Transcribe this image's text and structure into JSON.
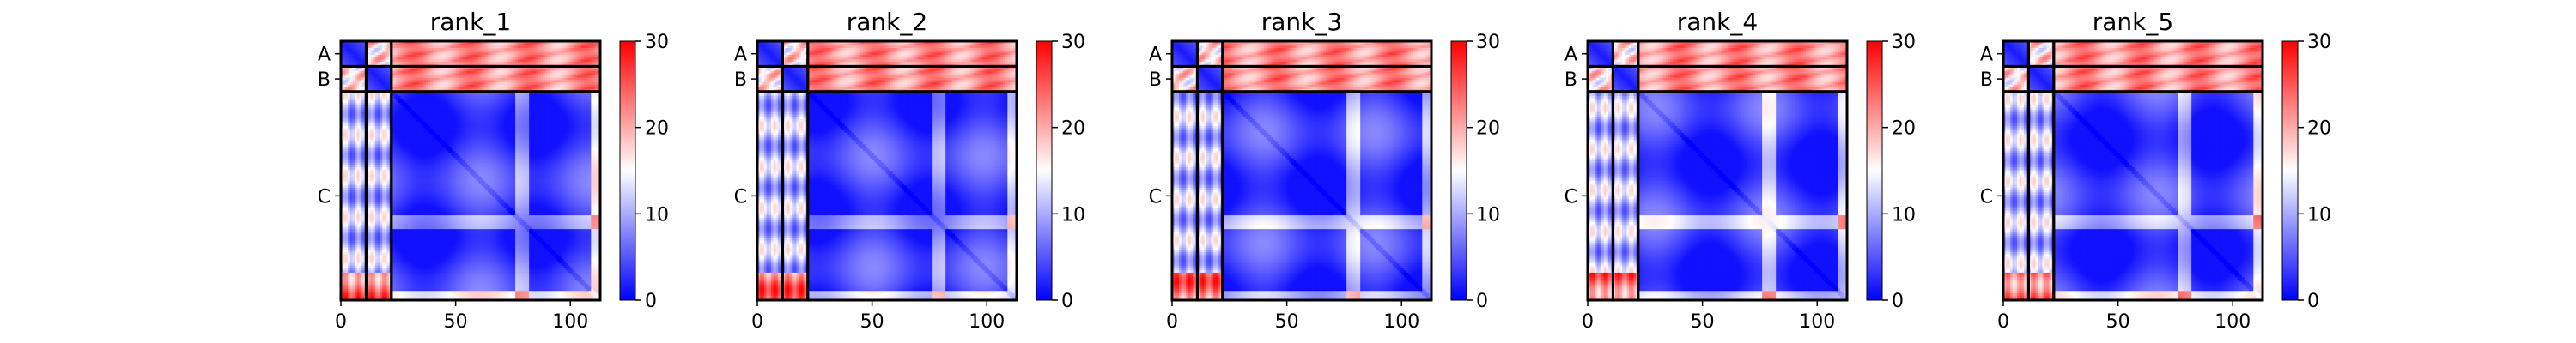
{
  "chart_data": [
    {
      "type": "heatmap",
      "title": "rank_1",
      "chain_labels": [
        "A",
        "B",
        "C"
      ],
      "chain_boundaries": [
        0,
        11,
        22,
        113
      ],
      "x_ticks": [
        0,
        50,
        100
      ],
      "colorbar": {
        "min": 0,
        "max": 30,
        "ticks": [
          0,
          10,
          20,
          30
        ],
        "colors": [
          "#0000ff",
          "#ffffff",
          "#ff0000"
        ]
      },
      "variant": 0
    },
    {
      "type": "heatmap",
      "title": "rank_2",
      "chain_labels": [
        "A",
        "B",
        "C"
      ],
      "chain_boundaries": [
        0,
        11,
        22,
        113
      ],
      "x_ticks": [
        0,
        50,
        100
      ],
      "colorbar": {
        "min": 0,
        "max": 30,
        "ticks": [
          0,
          10,
          20,
          30
        ],
        "colors": [
          "#0000ff",
          "#ffffff",
          "#ff0000"
        ]
      },
      "variant": 1
    },
    {
      "type": "heatmap",
      "title": "rank_3",
      "chain_labels": [
        "A",
        "B",
        "C"
      ],
      "chain_boundaries": [
        0,
        11,
        22,
        113
      ],
      "x_ticks": [
        0,
        50,
        100
      ],
      "colorbar": {
        "min": 0,
        "max": 30,
        "ticks": [
          0,
          10,
          20,
          30
        ],
        "colors": [
          "#0000ff",
          "#ffffff",
          "#ff0000"
        ]
      },
      "variant": 2
    },
    {
      "type": "heatmap",
      "title": "rank_4",
      "chain_labels": [
        "A",
        "B",
        "C"
      ],
      "chain_boundaries": [
        0,
        11,
        22,
        113
      ],
      "x_ticks": [
        0,
        50,
        100
      ],
      "colorbar": {
        "min": 0,
        "max": 30,
        "ticks": [
          0,
          10,
          20,
          30
        ],
        "colors": [
          "#0000ff",
          "#ffffff",
          "#ff0000"
        ]
      },
      "variant": 3
    },
    {
      "type": "heatmap",
      "title": "rank_5",
      "chain_labels": [
        "A",
        "B",
        "C"
      ],
      "chain_boundaries": [
        0,
        11,
        22,
        113
      ],
      "x_ticks": [
        0,
        50,
        100
      ],
      "colorbar": {
        "min": 0,
        "max": 30,
        "ticks": [
          0,
          10,
          20,
          30
        ],
        "colors": [
          "#0000ff",
          "#ffffff",
          "#ff0000"
        ]
      },
      "variant": 4
    }
  ]
}
